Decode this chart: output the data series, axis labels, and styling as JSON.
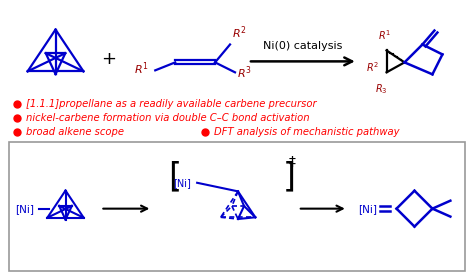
{
  "title_top": "Ni(0) catalysis",
  "bullet1": "[1.1.1]propellane as a readily available carbene precursor",
  "bullet2": "nickel-carbene formation via double C–C bond activation",
  "bullet3": "broad alkene scope",
  "bullet4": "DFT analysis of mechanistic pathway",
  "text_color_red": "#FF0000",
  "text_color_blue": "#0000CC",
  "text_color_dark_red": "#990000",
  "bg_color": "#FFFFFF",
  "blue": "#0000CC"
}
